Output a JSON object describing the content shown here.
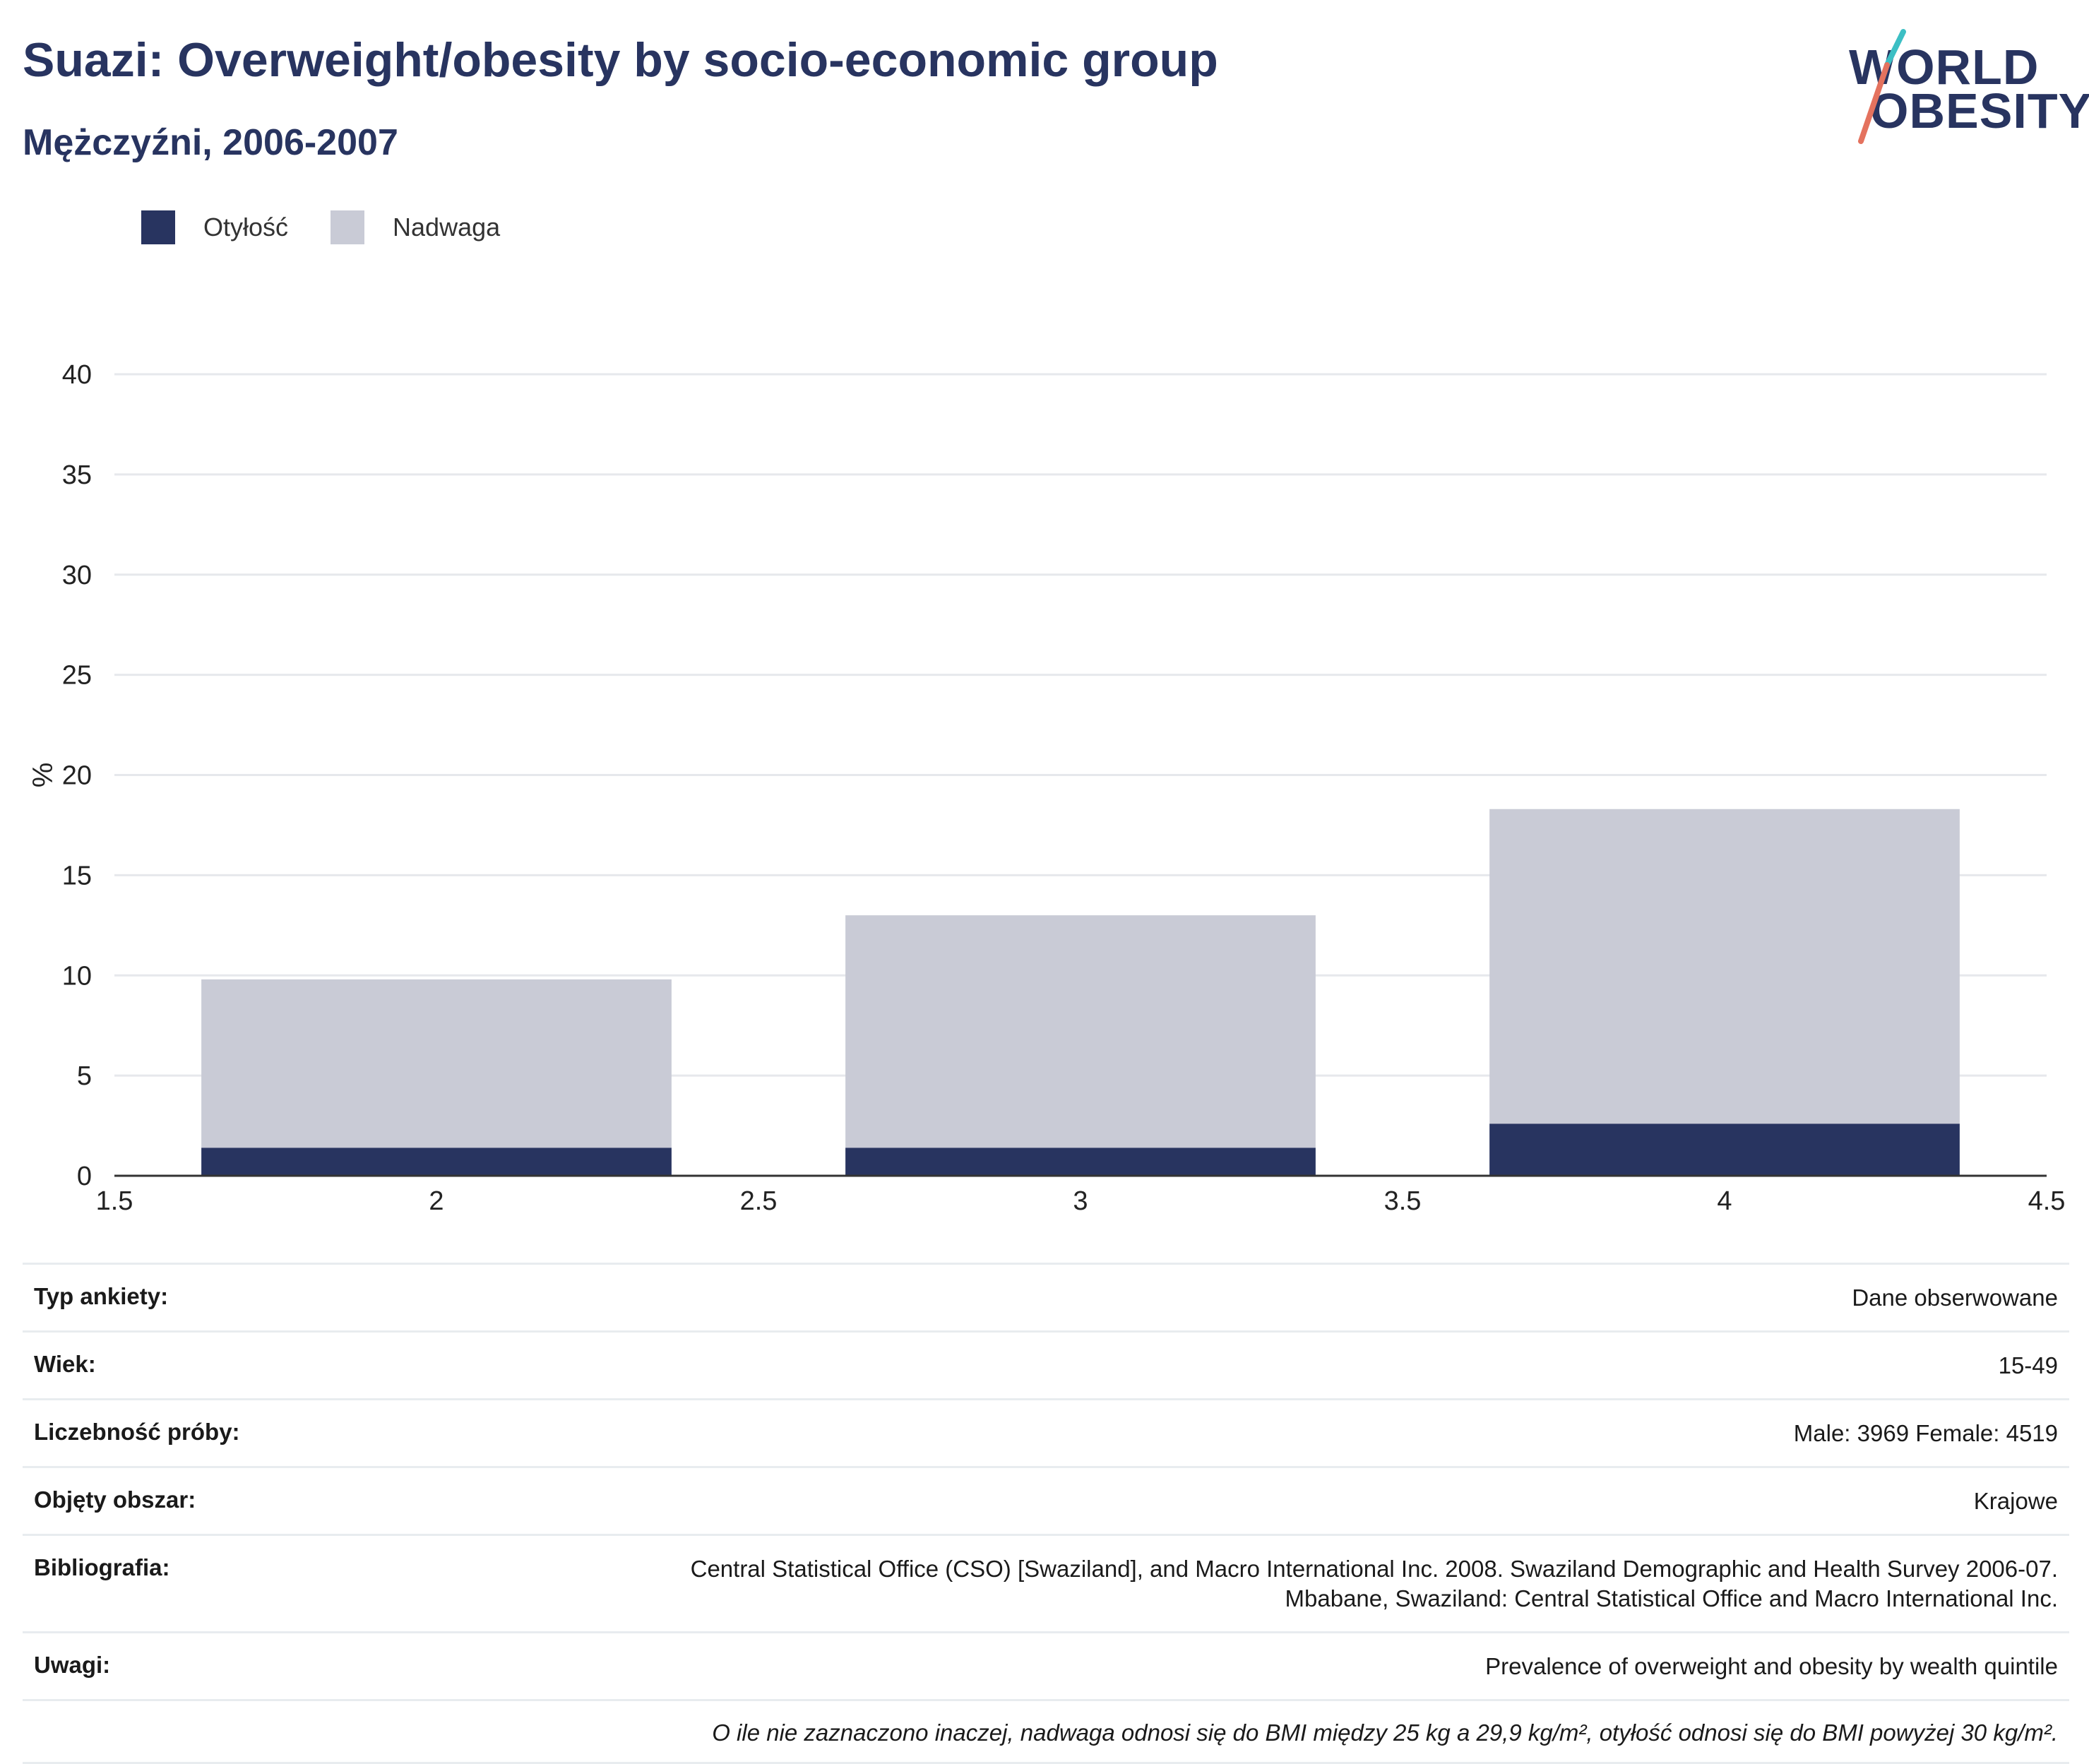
{
  "header": {
    "title": "Suazi: Overweight/obesity by socio-economic group",
    "subtitle": "Mężczyźni, 2006-2007"
  },
  "logo": {
    "line1": "WORLD",
    "line2": "OBESITY",
    "colors": {
      "text": "#283460",
      "accent1": "#3cbfc4",
      "accent2": "#e4725e"
    }
  },
  "legend": [
    {
      "label": "Otyłość",
      "color": "#283460"
    },
    {
      "label": "Nadwaga",
      "color": "#c9cbd6"
    }
  ],
  "chart_data": {
    "type": "bar",
    "stacked": true,
    "x": [
      2,
      3,
      4
    ],
    "xlim": [
      1.5,
      4.5
    ],
    "xticks": [
      "1.5",
      "2",
      "2.5",
      "3",
      "3.5",
      "4",
      "4.5"
    ],
    "ylim": [
      0,
      40
    ],
    "yticks": [
      "0",
      "5",
      "10",
      "15",
      "20",
      "25",
      "30",
      "35",
      "40"
    ],
    "ylabel": "%",
    "xlabel": "",
    "grid": true,
    "legend_position": "top-left",
    "series": [
      {
        "name": "Otyłość",
        "color": "#283460",
        "values": [
          1.4,
          1.4,
          2.6
        ]
      },
      {
        "name": "Nadwaga",
        "color": "#c9cbd6",
        "values": [
          8.4,
          11.6,
          15.7
        ]
      }
    ]
  },
  "info": {
    "rows": [
      {
        "key": "Typ ankiety:",
        "value": "Dane obserwowane"
      },
      {
        "key": "Wiek:",
        "value": "15-49"
      },
      {
        "key": "Liczebność próby:",
        "value": "Male: 3969 Female: 4519"
      },
      {
        "key": "Objęty obszar:",
        "value": "Krajowe"
      },
      {
        "key": "Bibliografia:",
        "value": "Central Statistical Office (CSO) [Swaziland], and Macro International Inc. 2008. Swaziland Demographic and Health Survey 2006-07.",
        "value2": "Mbabane, Swaziland: Central Statistical Office and Macro International Inc."
      },
      {
        "key": "Uwagi:",
        "value": "Prevalence of overweight and obesity by wealth quintile"
      }
    ],
    "note": "O ile nie zaznaczono inaczej, nadwaga odnosi się do BMI między 25 kg a 29,9 kg/m², otyłość odnosi się do BMI powyżej 30 kg/m²."
  }
}
